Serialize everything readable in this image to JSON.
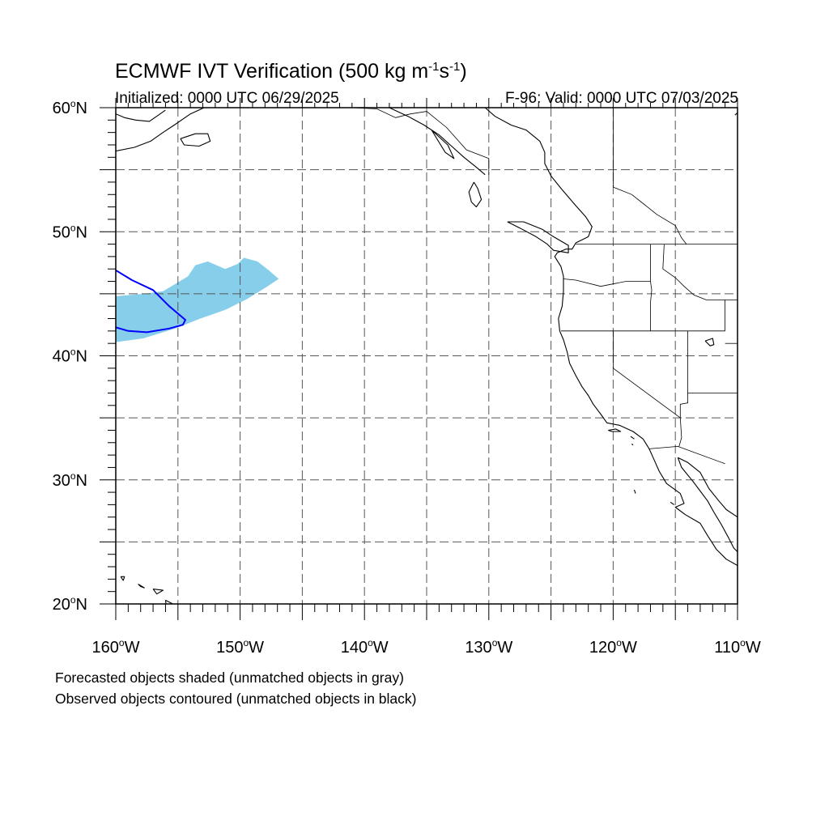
{
  "title": {
    "prefix": "ECMWF IVT Verification (500 kg m",
    "exp1": "-1",
    "middle": "s",
    "exp2": "-1",
    "suffix": ")"
  },
  "initialized": "Initialized: 0000 UTC 06/29/2025",
  "valid": "F-96: Valid: 0000 UTC 07/03/2025",
  "captions": {
    "forecast": "Forecasted objects shaded (unmatched objects in gray)",
    "observed": "Observed objects contoured (unmatched objects in black)"
  },
  "map": {
    "lon_range": [
      -160,
      -110
    ],
    "lat_range": [
      20,
      60
    ],
    "grid_step_degrees": 5,
    "longitude_labels": [
      {
        "lon": -160,
        "text": "160",
        "hemi": "W"
      },
      {
        "lon": -150,
        "text": "150",
        "hemi": "W"
      },
      {
        "lon": -140,
        "text": "140",
        "hemi": "W"
      },
      {
        "lon": -130,
        "text": "130",
        "hemi": "W"
      },
      {
        "lon": -120,
        "text": "120",
        "hemi": "W"
      },
      {
        "lon": -110,
        "text": "110",
        "hemi": "W"
      }
    ],
    "latitude_labels": [
      {
        "lat": 60,
        "text": "60",
        "hemi": "N"
      },
      {
        "lat": 50,
        "text": "50",
        "hemi": "N"
      },
      {
        "lat": 40,
        "text": "40",
        "hemi": "N"
      },
      {
        "lat": 30,
        "text": "30",
        "hemi": "N"
      },
      {
        "lat": 20,
        "text": "20",
        "hemi": "N"
      }
    ],
    "colors": {
      "forecast_fill": "#87ceeb",
      "observed_contour": "#0000ff",
      "coastline": "#000000",
      "grid": "#555555"
    },
    "forecast_object": [
      [
        -160,
        44.8
      ],
      [
        -157.7,
        45.0
      ],
      [
        -156.2,
        45.2
      ],
      [
        -155.2,
        45.8
      ],
      [
        -154.2,
        46.4
      ],
      [
        -153.6,
        47.3
      ],
      [
        -152.6,
        47.6
      ],
      [
        -151.2,
        47.0
      ],
      [
        -150.2,
        47.4
      ],
      [
        -149.7,
        47.9
      ],
      [
        -148.6,
        47.6
      ],
      [
        -147.7,
        46.9
      ],
      [
        -146.9,
        46.2
      ],
      [
        -147.8,
        45.6
      ],
      [
        -149.4,
        44.6
      ],
      [
        -151.2,
        43.7
      ],
      [
        -153.2,
        43.0
      ],
      [
        -155.2,
        42.2
      ],
      [
        -157.8,
        41.4
      ],
      [
        -160,
        41.1
      ]
    ],
    "observed_object": [
      [
        -160,
        46.9
      ],
      [
        -158.7,
        46.1
      ],
      [
        -157.0,
        45.3
      ],
      [
        -155.7,
        44.0
      ],
      [
        -154.4,
        42.9
      ],
      [
        -154.6,
        42.5
      ],
      [
        -155.7,
        42.2
      ],
      [
        -157.5,
        41.9
      ],
      [
        -159.0,
        42.0
      ],
      [
        -160,
        42.3
      ]
    ],
    "coastlines": [
      [
        [
          -130.3,
          60.0
        ],
        [
          -129.5,
          59.3
        ],
        [
          -128.2,
          58.6
        ],
        [
          -127.0,
          58.2
        ],
        [
          -125.9,
          57.3
        ],
        [
          -125.5,
          56.4
        ],
        [
          -125.5,
          55.5
        ],
        [
          -125.0,
          54.5
        ],
        [
          -124.2,
          53.5
        ],
        [
          -123.0,
          52.1
        ],
        [
          -122.2,
          51.2
        ],
        [
          -121.7,
          50.4
        ],
        [
          -122.0,
          49.6
        ],
        [
          -123.0,
          49.1
        ],
        [
          -123.3,
          48.6
        ],
        [
          -123.8,
          48.6
        ],
        [
          -124.5,
          48.3
        ],
        [
          -124.7,
          48.0
        ],
        [
          -124.2,
          47.2
        ],
        [
          -124.0,
          46.4
        ],
        [
          -124.0,
          45.2
        ],
        [
          -124.1,
          44.0
        ],
        [
          -124.4,
          43.0
        ],
        [
          -124.3,
          42.0
        ],
        [
          -124.0,
          41.3
        ],
        [
          -123.7,
          40.3
        ],
        [
          -123.5,
          39.4
        ],
        [
          -123.0,
          38.4
        ],
        [
          -122.5,
          37.5
        ],
        [
          -122.0,
          36.8
        ],
        [
          -121.6,
          36.1
        ],
        [
          -121.0,
          35.3
        ],
        [
          -120.5,
          34.6
        ],
        [
          -119.5,
          34.4
        ],
        [
          -118.4,
          33.9
        ],
        [
          -117.6,
          33.3
        ],
        [
          -117.1,
          32.5
        ],
        [
          -116.7,
          31.6
        ],
        [
          -116.3,
          30.7
        ],
        [
          -115.7,
          29.7
        ],
        [
          -114.6,
          28.9
        ],
        [
          -114.3,
          28.1
        ],
        [
          -115.0,
          27.8
        ],
        [
          -114.2,
          27.2
        ],
        [
          -113.0,
          26.5
        ],
        [
          -112.4,
          25.5
        ],
        [
          -111.7,
          24.4
        ],
        [
          -110.9,
          23.6
        ],
        [
          -110.0,
          23.1
        ]
      ],
      [
        [
          -114.8,
          31.8
        ],
        [
          -114.5,
          31.0
        ],
        [
          -113.6,
          29.9
        ],
        [
          -113.0,
          29.1
        ],
        [
          -112.4,
          28.3
        ],
        [
          -111.9,
          27.4
        ],
        [
          -111.3,
          26.4
        ],
        [
          -110.7,
          25.3
        ],
        [
          -110.3,
          24.5
        ],
        [
          -110.0,
          24.2
        ]
      ],
      [
        [
          -114.8,
          31.8
        ],
        [
          -114.0,
          31.4
        ],
        [
          -113.0,
          30.6
        ],
        [
          -112.3,
          29.3
        ],
        [
          -111.5,
          28.3
        ],
        [
          -110.9,
          27.6
        ],
        [
          -110.0,
          27.0
        ]
      ],
      [
        [
          -128.5,
          50.8
        ],
        [
          -127.5,
          50.3
        ],
        [
          -126.2,
          49.6
        ],
        [
          -125.3,
          49.0
        ],
        [
          -124.8,
          48.5
        ],
        [
          -123.6,
          48.3
        ],
        [
          -123.6,
          48.9
        ],
        [
          -124.8,
          49.6
        ],
        [
          -125.7,
          50.2
        ],
        [
          -127.2,
          50.8
        ],
        [
          -128.5,
          50.8
        ]
      ],
      [
        [
          -131.2,
          54.0
        ],
        [
          -131.6,
          53.2
        ],
        [
          -131.4,
          52.4
        ],
        [
          -131.0,
          52.0
        ],
        [
          -130.6,
          52.6
        ],
        [
          -130.9,
          53.5
        ],
        [
          -131.2,
          54.0
        ]
      ],
      [
        [
          -160,
          56.5
        ],
        [
          -158.5,
          56.8
        ],
        [
          -157.2,
          57.3
        ],
        [
          -156.2,
          58.0
        ],
        [
          -155.3,
          58.6
        ],
        [
          -154.0,
          59.5
        ],
        [
          -152.9,
          60.0
        ]
      ],
      [
        [
          -160,
          59.5
        ],
        [
          -159.3,
          59.2
        ],
        [
          -158.4,
          59.0
        ],
        [
          -157.3,
          58.9
        ],
        [
          -156.0,
          59.8
        ]
      ],
      [
        [
          -154.8,
          57.5
        ],
        [
          -153.6,
          57.9
        ],
        [
          -152.6,
          57.9
        ],
        [
          -152.4,
          57.3
        ],
        [
          -153.3,
          56.9
        ],
        [
          -154.5,
          57.0
        ],
        [
          -154.8,
          57.5
        ]
      ],
      [
        [
          -138.0,
          60.0
        ],
        [
          -136.5,
          59.3
        ],
        [
          -135.2,
          58.6
        ],
        [
          -134.0,
          57.8
        ],
        [
          -133.0,
          56.9
        ],
        [
          -132.0,
          56.0
        ],
        [
          -131.0,
          55.2
        ],
        [
          -130.3,
          54.6
        ]
      ],
      [
        [
          -134.6,
          58.2
        ],
        [
          -134.0,
          57.2
        ],
        [
          -133.5,
          56.4
        ],
        [
          -132.8,
          55.9
        ],
        [
          -133.3,
          57.0
        ],
        [
          -134.6,
          58.2
        ]
      ],
      [
        [
          -110.2,
          59.4
        ],
        [
          -110.0,
          59.6
        ]
      ],
      [
        [
          -159.6,
          22.2
        ],
        [
          -159.3,
          22.2
        ],
        [
          -159.4,
          21.9
        ],
        [
          -159.6,
          22.2
        ]
      ],
      [
        [
          -158.2,
          21.6
        ],
        [
          -157.7,
          21.3
        ],
        [
          -158.0,
          21.4
        ],
        [
          -158.2,
          21.6
        ]
      ],
      [
        [
          -157.0,
          21.2
        ],
        [
          -156.2,
          21.1
        ],
        [
          -156.7,
          20.8
        ],
        [
          -157.0,
          21.2
        ]
      ],
      [
        [
          -156.0,
          20.3
        ],
        [
          -155.0,
          19.8
        ],
        [
          -155.9,
          19.6
        ],
        [
          -156.0,
          20.3
        ]
      ],
      [
        [
          -120.4,
          34.0
        ],
        [
          -119.8,
          34.1
        ],
        [
          -119.4,
          33.9
        ],
        [
          -120.1,
          33.9
        ],
        [
          -120.4,
          34.0
        ]
      ],
      [
        [
          -118.6,
          33.5
        ],
        [
          -118.3,
          33.3
        ]
      ],
      [
        [
          -118.5,
          32.9
        ],
        [
          -118.4,
          32.8
        ]
      ],
      [
        [
          -118.3,
          29.2
        ],
        [
          -118.2,
          28.9
        ]
      ],
      [
        [
          -115.4,
          28.2
        ],
        [
          -115.1,
          28.0
        ]
      ],
      [
        [
          -112.6,
          41.2
        ],
        [
          -112.2,
          40.8
        ],
        [
          -111.9,
          40.9
        ],
        [
          -112.0,
          41.4
        ],
        [
          -112.6,
          41.2
        ]
      ]
    ],
    "boundaries": [
      [
        [
          -141.0,
          60.0
        ],
        [
          -139.0,
          59.9
        ],
        [
          -137.5,
          59.2
        ],
        [
          -136.3,
          59.5
        ],
        [
          -135.0,
          59.7
        ],
        [
          -133.4,
          58.4
        ],
        [
          -131.8,
          56.6
        ],
        [
          -130.0,
          55.9
        ],
        [
          -130.0,
          54.6
        ]
      ],
      [
        [
          -123.0,
          49.0
        ],
        [
          -110.0,
          49.0
        ]
      ],
      [
        [
          -117.0,
          49.0
        ],
        [
          -117.0,
          46.0
        ],
        [
          -116.9,
          45.3
        ],
        [
          -117.0,
          44.3
        ],
        [
          -117.0,
          42.0
        ]
      ],
      [
        [
          -124.0,
          46.2
        ],
        [
          -123.0,
          46.1
        ],
        [
          -121.0,
          45.6
        ],
        [
          -119.0,
          46.0
        ],
        [
          -117.0,
          46.0
        ]
      ],
      [
        [
          -124.2,
          42.0
        ],
        [
          -111.0,
          42.0
        ]
      ],
      [
        [
          -120.0,
          42.0
        ],
        [
          -120.0,
          39.0
        ],
        [
          -114.6,
          35.0
        ]
      ],
      [
        [
          -114.0,
          42.0
        ],
        [
          -114.0,
          36.2
        ],
        [
          -114.6,
          36.1
        ],
        [
          -114.6,
          35.0
        ],
        [
          -114.5,
          33.4
        ],
        [
          -114.7,
          32.7
        ]
      ],
      [
        [
          -117.1,
          32.5
        ],
        [
          -114.8,
          32.7
        ],
        [
          -111.0,
          31.3
        ]
      ],
      [
        [
          -114.0,
          37.0
        ],
        [
          -110.0,
          37.0
        ]
      ],
      [
        [
          -111.0,
          42.0
        ],
        [
          -111.0,
          44.5
        ],
        [
          -110.0,
          44.5
        ]
      ],
      [
        [
          -110.0,
          41.0
        ],
        [
          -111.0,
          41.0
        ]
      ],
      [
        [
          -115.9,
          49.0
        ],
        [
          -116.0,
          47.0
        ],
        [
          -115.0,
          46.3
        ],
        [
          -114.3,
          45.6
        ],
        [
          -113.5,
          44.9
        ],
        [
          -112.5,
          44.5
        ],
        [
          -111.0,
          44.5
        ]
      ],
      [
        [
          -120.0,
          53.6
        ],
        [
          -118.5,
          53.0
        ],
        [
          -117.5,
          52.2
        ],
        [
          -116.5,
          51.4
        ],
        [
          -115.0,
          50.5
        ],
        [
          -114.5,
          49.5
        ],
        [
          -114.1,
          49.0
        ]
      ],
      [
        [
          -120.0,
          60.0
        ],
        [
          -120.0,
          53.6
        ]
      ]
    ]
  }
}
